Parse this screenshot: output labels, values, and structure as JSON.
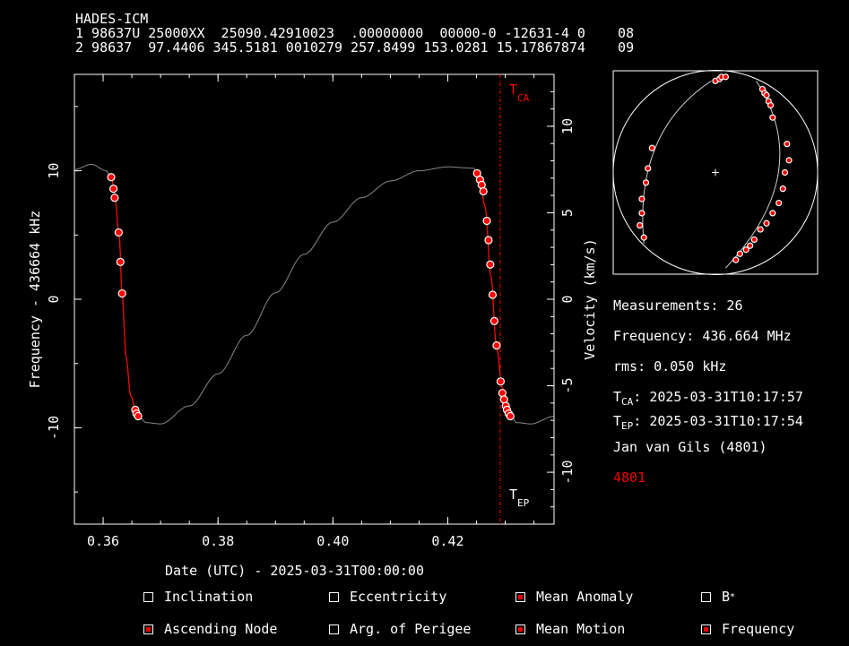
{
  "header": {
    "name": "HADES-ICM",
    "line1": "1 98637U 25000XX  25090.42910023  .00000000  00000-0 -12631-4 0    08",
    "line2": "2 98637  97.4406 345.5181 0010279 257.8499 153.0281 15.17867874    09"
  },
  "info": {
    "measurements": "Measurements: 26",
    "frequency": "Frequency: 436.664 MHz",
    "rms": "rms: 0.050 kHz",
    "tca_prefix": "T",
    "tca_sub": "CA",
    "tca_value": ": 2025-03-31T10:17:57",
    "tep_prefix": "T",
    "tep_sub": "EP",
    "tep_value": ": 2025-03-31T10:17:54",
    "observer": "Jan van Gils (4801)",
    "station": "4801"
  },
  "options": [
    {
      "label": "Inclination",
      "checked": false
    },
    {
      "label": "Eccentricity",
      "checked": false
    },
    {
      "label": "Mean Anomaly",
      "checked": true
    },
    {
      "label": "B",
      "sup": "*",
      "checked": false
    },
    {
      "label": "Ascending Node",
      "checked": true
    },
    {
      "label": "Arg. of Perigee",
      "checked": false
    },
    {
      "label": "Mean Motion",
      "checked": true
    },
    {
      "label": "Frequency",
      "checked": true
    }
  ],
  "chart_data": {
    "type": "scatter",
    "xlabel": "Date (UTC) - 2025-03-31T00:00:00",
    "ylabel": "Frequency - 436664 kHz",
    "y2label": "Velocity (km/s)",
    "xlim": [
      0.355,
      0.4385
    ],
    "ylim": [
      -17.5,
      17.5
    ],
    "y2lim": [
      -13,
      13
    ],
    "xticks": [
      0.36,
      0.38,
      0.4,
      0.42
    ],
    "yticks": [
      -10,
      0,
      10
    ],
    "y2ticks": [
      -10,
      -5,
      0,
      5,
      10
    ],
    "tca_label": "T",
    "tca_label_sub": "CA",
    "tep_label": "T",
    "tep_label_sub": "EP",
    "tca_x": 0.42913,
    "tep_x": 0.42909,
    "curve_color": "#888888",
    "fit_color": "#ff0000",
    "marker_color": "#ff0000",
    "points": [
      [
        0.3614,
        9.5
      ],
      [
        0.3618,
        8.6
      ],
      [
        0.362,
        7.9
      ],
      [
        0.3627,
        5.2
      ],
      [
        0.363,
        2.9
      ],
      [
        0.3633,
        0.45
      ],
      [
        0.3656,
        -8.6
      ],
      [
        0.3658,
        -8.9
      ],
      [
        0.3661,
        -9.1
      ],
      [
        0.4251,
        9.8
      ],
      [
        0.4256,
        9.3
      ],
      [
        0.4259,
        8.9
      ],
      [
        0.4262,
        8.4
      ],
      [
        0.4268,
        6.1
      ],
      [
        0.4271,
        4.6
      ],
      [
        0.4274,
        2.7
      ],
      [
        0.4278,
        0.35
      ],
      [
        0.4281,
        -1.7
      ],
      [
        0.4285,
        -3.6
      ],
      [
        0.4292,
        -6.4
      ],
      [
        0.4295,
        -7.3
      ],
      [
        0.4298,
        -7.8
      ],
      [
        0.4301,
        -8.3
      ],
      [
        0.4303,
        -8.6
      ],
      [
        0.4306,
        -8.9
      ],
      [
        0.4309,
        -9.1
      ]
    ]
  },
  "track": {
    "points_a": [
      [
        0.5,
        0.05
      ],
      [
        0.52,
        0.04
      ],
      [
        0.53,
        0.03
      ],
      [
        0.55,
        0.03
      ],
      [
        0.19,
        0.38
      ],
      [
        0.17,
        0.48
      ],
      [
        0.16,
        0.55
      ],
      [
        0.14,
        0.63
      ],
      [
        0.14,
        0.7
      ],
      [
        0.13,
        0.76
      ],
      [
        0.15,
        0.82
      ]
    ],
    "points_b": [
      [
        0.73,
        0.09
      ],
      [
        0.74,
        0.11
      ],
      [
        0.75,
        0.12
      ],
      [
        0.76,
        0.15
      ],
      [
        0.77,
        0.17
      ],
      [
        0.78,
        0.23
      ],
      [
        0.85,
        0.36
      ],
      [
        0.86,
        0.44
      ],
      [
        0.84,
        0.5
      ],
      [
        0.83,
        0.58
      ],
      [
        0.81,
        0.65
      ],
      [
        0.78,
        0.7
      ],
      [
        0.75,
        0.75
      ],
      [
        0.72,
        0.78
      ],
      [
        0.69,
        0.83
      ],
      [
        0.67,
        0.86
      ],
      [
        0.65,
        0.88
      ],
      [
        0.62,
        0.9
      ],
      [
        0.6,
        0.93
      ]
    ]
  }
}
